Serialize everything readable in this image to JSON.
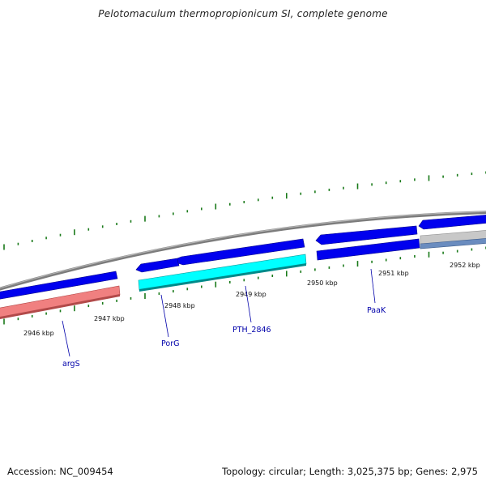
{
  "title": "Pelotomaculum thermopropionicum SI, complete genome",
  "footer": {
    "accession": "Accession: NC_009454",
    "summary": "Topology: circular; Length: 3,025,375 bp; Genes: 2,975"
  },
  "colors": {
    "backbone": "#8a8a8a",
    "forward_gene": "#0000ee",
    "reverse_gene_pink": "#f08080",
    "reverse_gene_cyan": "#00ffff",
    "reverse_gene_grey": "#c8c8c8",
    "reverse_gene_steel": "#6a8cbf",
    "tick": "#1a7a1a",
    "label_link": "#0000aa"
  },
  "scale": {
    "unit": "kbp",
    "labels": [
      "2946 kbp",
      "2947 kbp",
      "2948 kbp",
      "2949 kbp",
      "2950 kbp",
      "2951 kbp",
      "2952 kbp"
    ]
  },
  "genes": [
    {
      "name": "argS",
      "strand": "reverse",
      "color": "pink"
    },
    {
      "name": "PorG",
      "strand": "reverse",
      "color": "cyan"
    },
    {
      "name": "PTH_2846",
      "strand": "reverse",
      "color": "cyan"
    },
    {
      "name": "PaaK",
      "strand": "forward",
      "color": "blue"
    }
  ]
}
